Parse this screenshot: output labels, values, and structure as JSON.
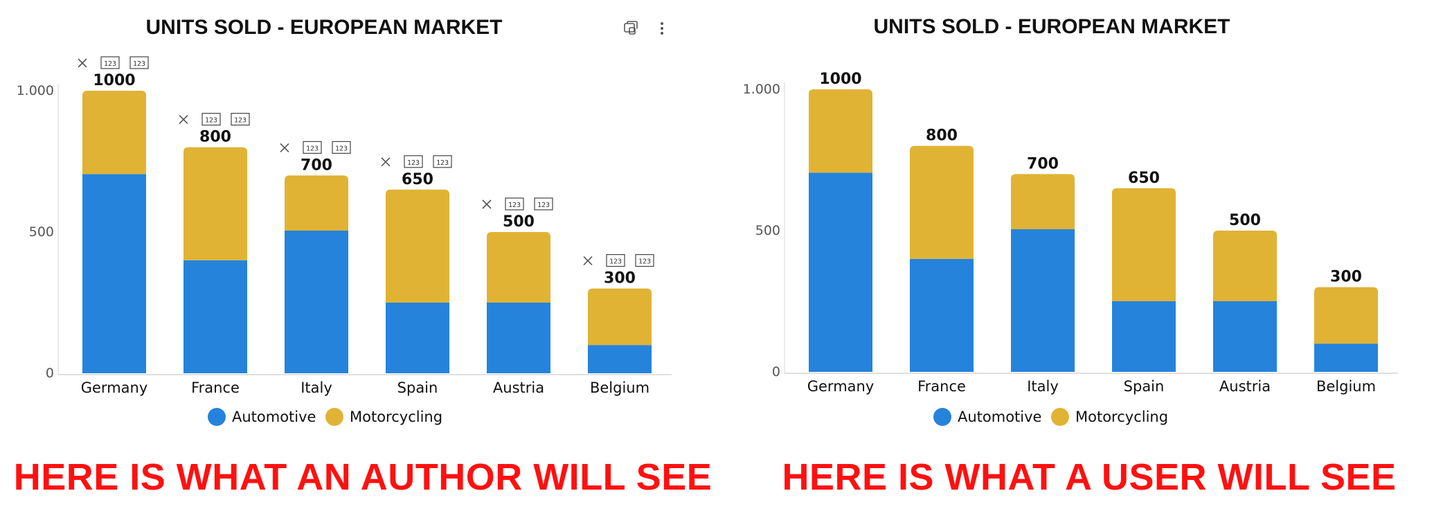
{
  "colors": {
    "automotive": "#2583dc",
    "motorcycling": "#e0b334",
    "caption": "#ff1010",
    "axis_text": "#555555",
    "label_text": "#111111"
  },
  "left_panel": {
    "caption": "HERE IS WHAT AN AUTHOR WILL SEE",
    "toolbar": {
      "copy_icon": "copy-icon",
      "more_icon": "more-options-icon"
    },
    "author_overlay": {
      "remove_icon": "close-icon",
      "format_icon": "number-format-icon",
      "format_glyph": "123"
    }
  },
  "right_panel": {
    "caption": "HERE IS WHAT A USER WILL SEE"
  },
  "chart_data": [
    {
      "type": "bar",
      "stacked": true,
      "title": "UNITS SOLD - EUROPEAN MARKET",
      "categories": [
        "Germany",
        "France",
        "Italy",
        "Spain",
        "Austria",
        "Belgium"
      ],
      "series": [
        {
          "name": "Automotive",
          "values": [
            705,
            400,
            505,
            250,
            250,
            100
          ]
        },
        {
          "name": "Motorcycling",
          "values": [
            295,
            400,
            195,
            400,
            250,
            200
          ]
        }
      ],
      "totals": [
        "1000",
        "800",
        "700",
        "650",
        "500",
        "300"
      ],
      "ylim": [
        0,
        1000
      ],
      "yticks": [
        {
          "value": 0,
          "label": "0"
        },
        {
          "value": 500,
          "label": "500"
        },
        {
          "value": 1000,
          "label": "1.000"
        }
      ],
      "legend": {
        "position": "bottom",
        "items": [
          "Automotive",
          "Motorcycling"
        ]
      },
      "grid": false,
      "view": "author"
    },
    {
      "type": "bar",
      "stacked": true,
      "title": "UNITS SOLD - EUROPEAN MARKET",
      "categories": [
        "Germany",
        "France",
        "Italy",
        "Spain",
        "Austria",
        "Belgium"
      ],
      "series": [
        {
          "name": "Automotive",
          "values": [
            705,
            400,
            505,
            250,
            250,
            100
          ]
        },
        {
          "name": "Motorcycling",
          "values": [
            295,
            400,
            195,
            400,
            250,
            200
          ]
        }
      ],
      "totals": [
        "1000",
        "800",
        "700",
        "650",
        "500",
        "300"
      ],
      "ylim": [
        0,
        1000
      ],
      "yticks": [
        {
          "value": 0,
          "label": "0"
        },
        {
          "value": 500,
          "label": "500"
        },
        {
          "value": 1000,
          "label": "1.000"
        }
      ],
      "legend": {
        "position": "bottom",
        "items": [
          "Automotive",
          "Motorcycling"
        ]
      },
      "grid": false,
      "view": "user"
    }
  ]
}
